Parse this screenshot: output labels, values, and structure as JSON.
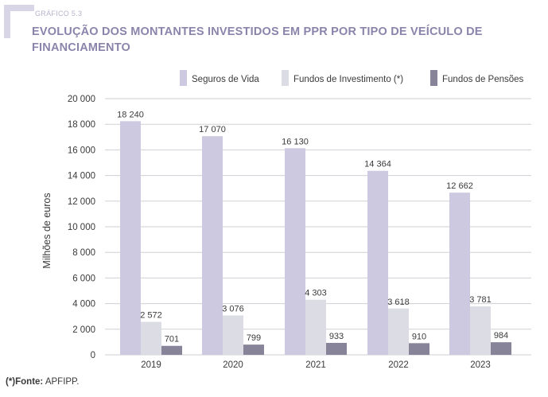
{
  "header": {
    "kicker": "GRÁFICO 5.3",
    "title": "EVOLUÇÃO DOS MONTANTES INVESTIDOS EM PPR POR TIPO DE VEÍCULO DE FINANCIAMENTO"
  },
  "source": {
    "label": "(*)Fonte:",
    "text": "APFIPP."
  },
  "colors": {
    "seguros": "#cdc9e1",
    "fundos_inv": "#dcdce5",
    "fundos_pen": "#878499",
    "grid": "#cfcfd6",
    "text": "#3a3a3a"
  },
  "chart_data": {
    "type": "bar",
    "title": "EVOLUÇÃO DOS MONTANTES INVESTIDOS EM PPR POR TIPO DE VEÍCULO DE FINANCIAMENTO",
    "xlabel": "",
    "ylabel": "Milhões de euros",
    "ylim": [
      0,
      20000
    ],
    "yticks": [
      0,
      2000,
      4000,
      6000,
      8000,
      10000,
      12000,
      14000,
      16000,
      18000,
      20000
    ],
    "ytick_labels": [
      "0",
      "2 000",
      "4 000",
      "6 000",
      "8 000",
      "10 000",
      "12 000",
      "14 000",
      "16 000",
      "18 000",
      "20 000"
    ],
    "legend_position": "top-right",
    "categories": [
      "2019",
      "2020",
      "2021",
      "2022",
      "2023"
    ],
    "series": [
      {
        "name": "Seguros de Vida",
        "color": "#cdc9e1",
        "values": [
          18240,
          17070,
          16130,
          14364,
          12662
        ],
        "labels": [
          "18 240",
          "17 070",
          "16 130",
          "14 364",
          "12 662"
        ]
      },
      {
        "name": "Fundos de Investimento (*)",
        "color": "#dcdce5",
        "values": [
          2572,
          3076,
          4303,
          3618,
          3781
        ],
        "labels": [
          "2 572",
          "3 076",
          "4 303",
          "3 618",
          "3 781"
        ]
      },
      {
        "name": "Fundos de Pensões",
        "color": "#878499",
        "values": [
          701,
          799,
          933,
          910,
          984
        ],
        "labels": [
          "701",
          "799",
          "933",
          "910",
          "984"
        ]
      }
    ]
  }
}
